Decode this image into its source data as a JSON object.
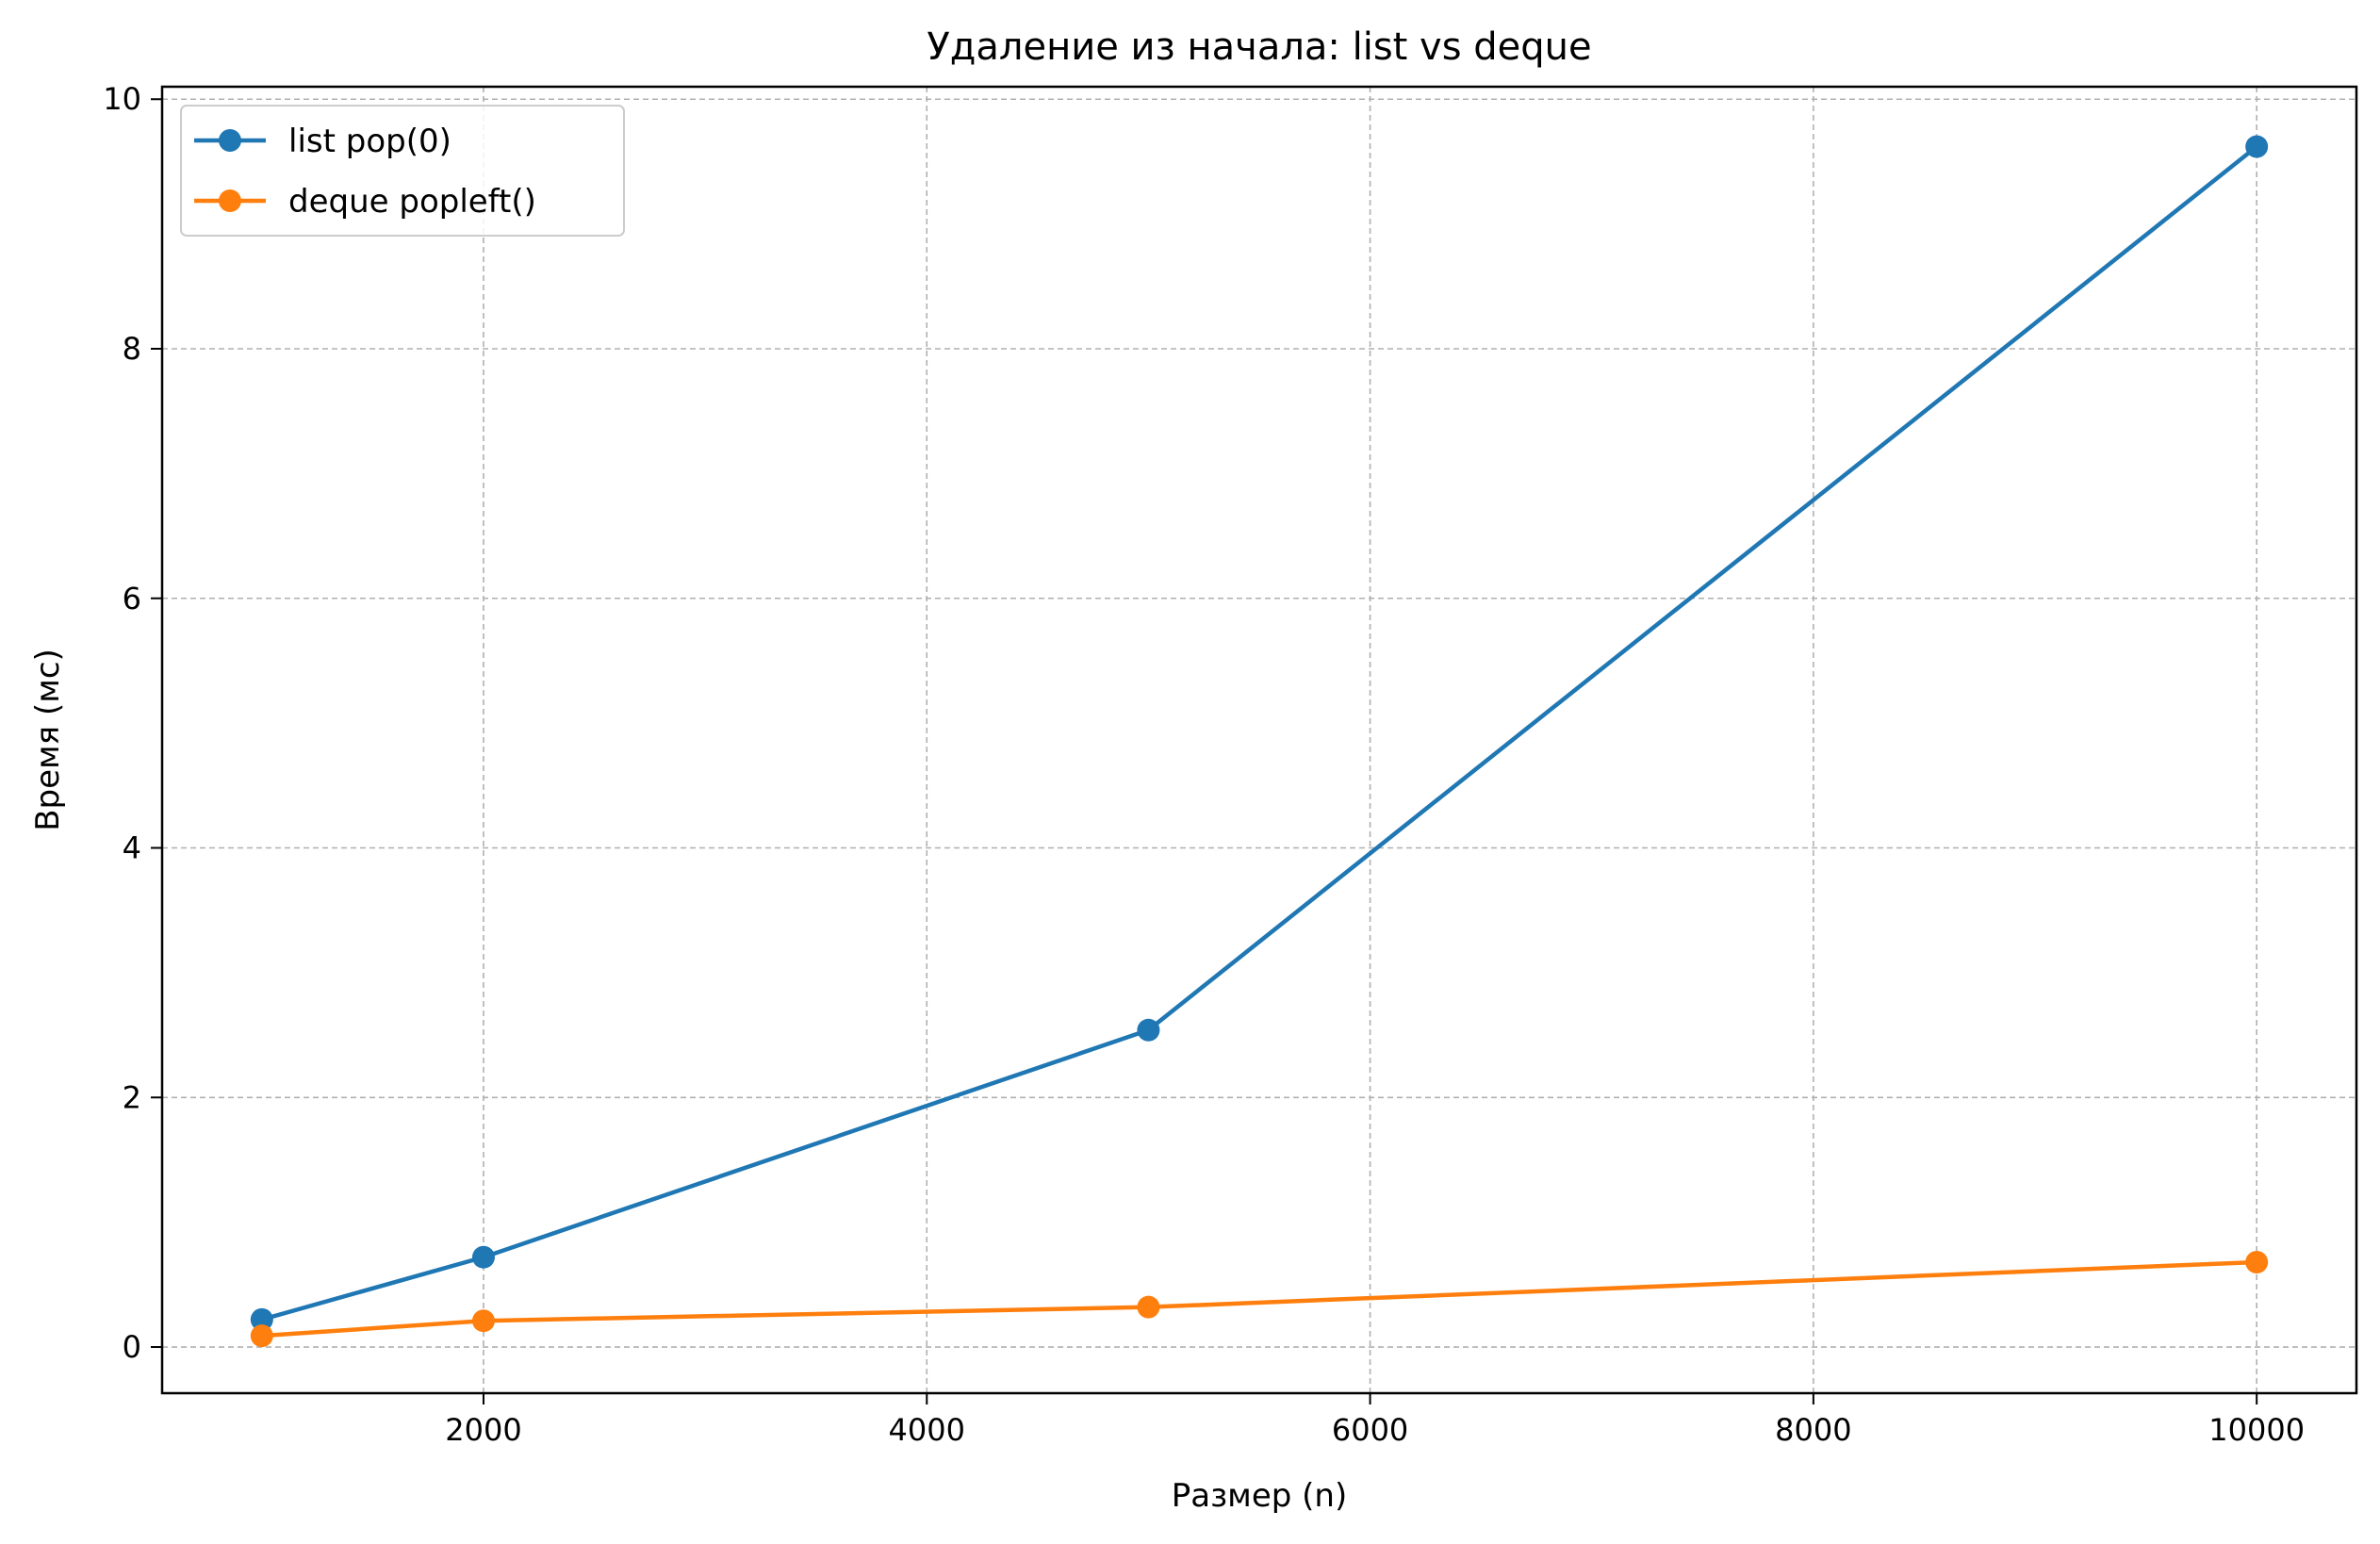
{
  "chart_data": {
    "type": "line",
    "title": "Удаление из начала: list vs deque",
    "xlabel": "Размер (n)",
    "ylabel": "Время (мс)",
    "x": [
      1000,
      2000,
      5000,
      10000
    ],
    "series": [
      {
        "name": "list pop(0)",
        "values": [
          0.22,
          0.72,
          2.54,
          9.62
        ],
        "color": "#1f77b4"
      },
      {
        "name": "deque popleft()",
        "values": [
          0.09,
          0.21,
          0.32,
          0.68
        ],
        "color": "#ff7f0e"
      }
    ],
    "xlim": [
      550,
      10450
    ],
    "ylim": [
      -0.37,
      10.1
    ],
    "xticks": [
      2000,
      4000,
      6000,
      8000,
      10000
    ],
    "yticks": [
      0,
      2,
      4,
      6,
      8,
      10
    ],
    "grid": true,
    "grid_style": "dashed",
    "legend": "upper-left",
    "marker": "circle"
  }
}
